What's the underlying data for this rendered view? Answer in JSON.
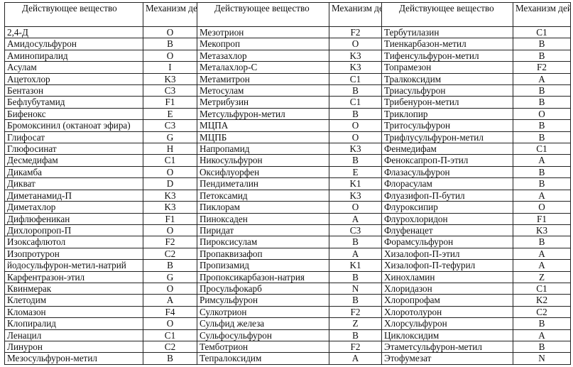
{
  "header": {
    "substance": "Действующее вещество",
    "mechanism": "Механизм действия"
  },
  "rows": [
    [
      "2,4-Д",
      "O",
      "Мезотрион",
      "F2",
      "Тербутилазин",
      "C1"
    ],
    [
      "Амидосульфурон",
      "B",
      "Мекопроп",
      "O",
      "Тиенкарбазон-метил",
      "B"
    ],
    [
      "Аминопиралид",
      "O",
      "Метазахлор",
      "K3",
      "Тифенсульфурон-метил",
      "B"
    ],
    [
      "Асулам",
      "I",
      "Металахлор-С",
      "K3",
      "Топрамезон",
      "F2"
    ],
    [
      "Ацетохлор",
      "K3",
      "Метамитрон",
      "C1",
      "Тралкоксидим",
      "A"
    ],
    [
      "Бентазон",
      "C3",
      "Метосулам",
      "B",
      "Триасульфурон",
      "B"
    ],
    [
      "Бефлубутамид",
      "F1",
      "Метрибузин",
      "C1",
      "Трибенурон-метил",
      "B"
    ],
    [
      "Бифенокс",
      "E",
      "Метсульфурон-метил",
      "B",
      "Триклопир",
      "O"
    ],
    [
      "Бромоксинил (октаноат эфира)",
      "C3",
      "МЦПА",
      "O",
      "Тритосульфурон",
      "B"
    ],
    [
      "Глифосат",
      "G",
      "МЦПБ",
      "O",
      "Трифлусульфурон-метил",
      "B"
    ],
    [
      "Глюфосинат",
      "H",
      "Напропамид",
      "K3",
      "Фенмедифам",
      "C1"
    ],
    [
      "Десмедифам",
      "C1",
      "Никосульфурон",
      "B",
      "Феноксапроп-П-этил",
      "A"
    ],
    [
      "Дикамба",
      "O",
      "Оксифлуорфен",
      "E",
      "Флазасульфурон",
      "B"
    ],
    [
      "Дикват",
      "D",
      "Пендиметалин",
      "K1",
      "Флорасулам",
      "B"
    ],
    [
      "Диметанамид-П",
      "K3",
      "Петоксамид",
      "K3",
      "Флуазифоп-П-бутил",
      "A"
    ],
    [
      "Диметахлор",
      "K3",
      "Пиклорам",
      "O",
      "Флуроксипир",
      "O"
    ],
    [
      "Дифлюфеникан",
      "F1",
      "Пиноксаден",
      "A",
      "Флурохлоридон",
      "F1"
    ],
    [
      "Дихлоропроп-П",
      "O",
      "Пиридат",
      "C3",
      "Флуфенацет",
      "K3"
    ],
    [
      "Изоксафлютол",
      "F2",
      "Пироксисулам",
      "B",
      "Форамсульфурон",
      "B"
    ],
    [
      "Изопротурон",
      "C2",
      "Пропаквизафоп",
      "A",
      "Хизалофоп-П-этил",
      "A"
    ],
    [
      "йодосульфурон-метил-натрий",
      "B",
      "Пропизамид",
      "K1",
      "Хизалофоп-П-тефурил",
      "A"
    ],
    [
      "Карфентразон-этил",
      "G",
      "Пропоксикарбазон-натрия",
      "B",
      "Хинохламин",
      "Z"
    ],
    [
      "Квинмерак",
      "O",
      "Просульфокарб",
      "N",
      "Хлоридазон",
      "C1"
    ],
    [
      "Клетодим",
      "A",
      "Римсульфурон",
      "B",
      "Хлоропрофам",
      "K2"
    ],
    [
      "Кломазон",
      "F4",
      "Сулкотрион",
      "F2",
      "Хлоротолурон",
      "C2"
    ],
    [
      "Клопиралид",
      "O",
      "Сульфид железа",
      "Z",
      "Хлорсульфурон",
      "B"
    ],
    [
      "Ленацил",
      "C1",
      "Сульфосульфурон",
      "B",
      "Циклоксидим",
      "A"
    ],
    [
      "Линурон",
      "C2",
      "Темботрион",
      "F2",
      "Этаметсульфурон-метил",
      "B"
    ],
    [
      "Мезосульфурон-метил",
      "B",
      "Тепралоксидим",
      "A",
      "Этофумезат",
      "N"
    ]
  ]
}
